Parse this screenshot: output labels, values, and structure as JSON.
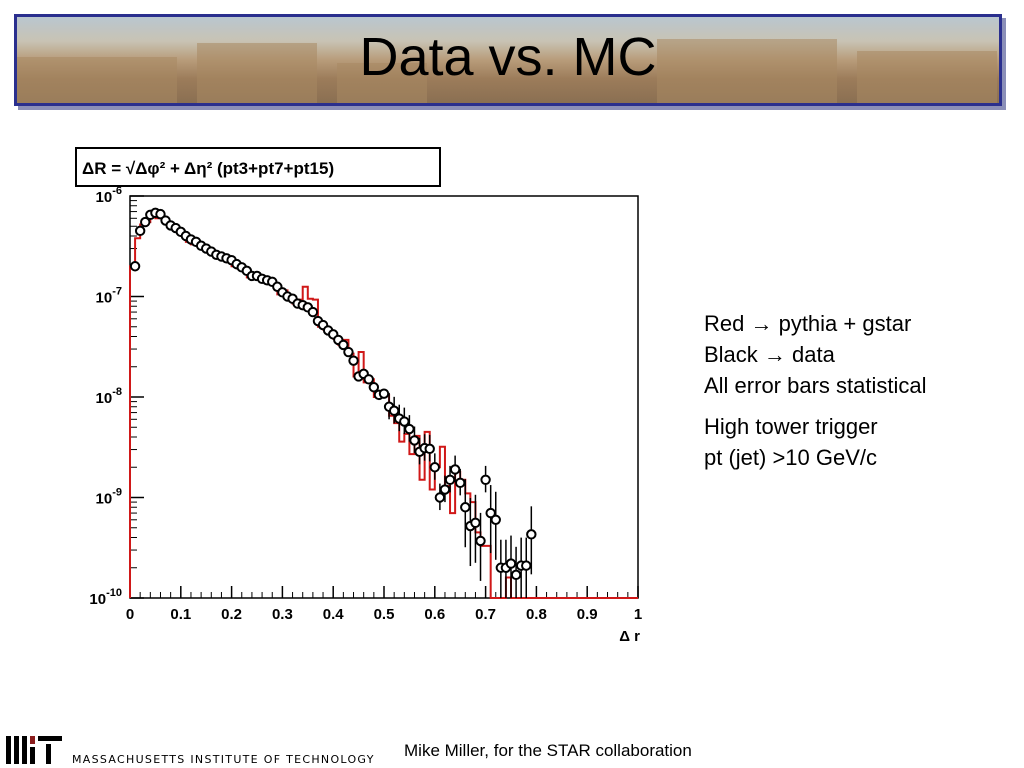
{
  "slide": {
    "title": "Data vs. MC",
    "notes": [
      "Red → pythia + gstar",
      "Black → data",
      "All error bars statistical"
    ],
    "notes2": [
      "High tower trigger",
      "pt (jet) >10 GeV/c"
    ],
    "footer_credit": "Mike Miller, for the STAR collaboration",
    "institution": "MASSACHUSETTS INSTITUTE OF TECHNOLOGY"
  },
  "colors": {
    "banner_border": "#2a2f8e",
    "mc_line": "#d01818",
    "data_marker": "#000000"
  },
  "chart_data": {
    "type": "scatter",
    "title": "ΔR = √Δφ² + Δη²   (pt3+pt7+pt15)",
    "xlabel": "Δ r",
    "ylabel": "",
    "xlim": [
      0,
      1
    ],
    "ylim": [
      1e-10,
      1e-06
    ],
    "y_scale": "log",
    "grid": false,
    "x_ticks": [
      "0",
      "0.1",
      "0.2",
      "0.3",
      "0.4",
      "0.5",
      "0.6",
      "0.7",
      "0.8",
      "0.9",
      "1"
    ],
    "y_ticks": [
      {
        "base": "10",
        "exp": "-6"
      },
      {
        "base": "10",
        "exp": "-7"
      },
      {
        "base": "10",
        "exp": "-8"
      },
      {
        "base": "10",
        "exp": "-9"
      },
      {
        "base": "10",
        "exp": "-10"
      }
    ],
    "series": [
      {
        "style": "markers-with-error-bars",
        "color": "#000000",
        "x": [
          0.01,
          0.02,
          0.03,
          0.04,
          0.05,
          0.06,
          0.07,
          0.08,
          0.09,
          0.1,
          0.11,
          0.12,
          0.13,
          0.14,
          0.15,
          0.16,
          0.17,
          0.18,
          0.19,
          0.2,
          0.21,
          0.22,
          0.23,
          0.24,
          0.25,
          0.26,
          0.27,
          0.28,
          0.29,
          0.3,
          0.31,
          0.32,
          0.33,
          0.34,
          0.35,
          0.36,
          0.37,
          0.38,
          0.39,
          0.4,
          0.41,
          0.42,
          0.43,
          0.44,
          0.45,
          0.46,
          0.47,
          0.48,
          0.49,
          0.5,
          0.51,
          0.52,
          0.53,
          0.54,
          0.55,
          0.56,
          0.57,
          0.58,
          0.59,
          0.6,
          0.61,
          0.62,
          0.63,
          0.64,
          0.65,
          0.66,
          0.67,
          0.68,
          0.69,
          0.7,
          0.71,
          0.72,
          0.73,
          0.74,
          0.75,
          0.76,
          0.77,
          0.78,
          0.79
        ],
        "y": [
          2e-07,
          4.5e-07,
          5.5e-07,
          6.5e-07,
          6.8e-07,
          6.6e-07,
          5.7e-07,
          5.1e-07,
          4.8e-07,
          4.4e-07,
          4e-07,
          3.7e-07,
          3.5e-07,
          3.2e-07,
          3e-07,
          2.8e-07,
          2.6e-07,
          2.5e-07,
          2.4e-07,
          2.3e-07,
          2.1e-07,
          1.95e-07,
          1.8e-07,
          1.6e-07,
          1.6e-07,
          1.5e-07,
          1.45e-07,
          1.4e-07,
          1.25e-07,
          1.1e-07,
          1e-07,
          9.5e-08,
          8.5e-08,
          8.2e-08,
          7.8e-08,
          7e-08,
          5.7e-08,
          5.2e-08,
          4.6e-08,
          4.2e-08,
          3.7e-08,
          3.3e-08,
          2.8e-08,
          2.3e-08,
          1.6e-08,
          1.7e-08,
          1.5e-08,
          1.25e-08,
          1.05e-08,
          1.08e-08,
          8e-09,
          7.3e-09,
          6.1e-09,
          5.7e-09,
          4.8e-09,
          3.7e-09,
          2.85e-09,
          3.1e-09,
          3.05e-09,
          2e-09,
          1e-09,
          1.2e-09,
          1.5e-09,
          1.9e-09,
          1.4e-09,
          8e-10,
          5.2e-10,
          5.6e-10,
          3.7e-10,
          1.5e-09,
          7e-10,
          6e-10,
          2e-10,
          2e-10,
          2.2e-10,
          1.7e-10,
          2.1e-10,
          2.1e-10,
          4.3e-10
        ]
      },
      {
        "style": "step-histogram",
        "color": "#d01818",
        "x": [
          0.01,
          0.02,
          0.03,
          0.04,
          0.05,
          0.06,
          0.07,
          0.08,
          0.09,
          0.1,
          0.11,
          0.12,
          0.13,
          0.14,
          0.15,
          0.16,
          0.17,
          0.18,
          0.19,
          0.2,
          0.21,
          0.22,
          0.23,
          0.24,
          0.25,
          0.26,
          0.27,
          0.28,
          0.29,
          0.3,
          0.31,
          0.32,
          0.33,
          0.34,
          0.35,
          0.36,
          0.37,
          0.38,
          0.39,
          0.4,
          0.41,
          0.42,
          0.43,
          0.44,
          0.45,
          0.46,
          0.47,
          0.48,
          0.49,
          0.5,
          0.51,
          0.52,
          0.53,
          0.54,
          0.55,
          0.56,
          0.57,
          0.58,
          0.59,
          0.6,
          0.61,
          0.62,
          0.63,
          0.64,
          0.65,
          0.66,
          0.67,
          0.68,
          0.69,
          0.7,
          0.71,
          0.72,
          0.73,
          0.74,
          0.75,
          0.76,
          0.77,
          0.78,
          0.79,
          0.8,
          0.81,
          0.82,
          0.83,
          0.84,
          0.85,
          0.86,
          0.87,
          0.88,
          0.89,
          0.9,
          0.91,
          0.92,
          0.93,
          0.94,
          0.95,
          0.96,
          0.97,
          0.98,
          0.99,
          1.0
        ],
        "y": [
          2e-07,
          3.8e-07,
          5.2e-07,
          5.5e-07,
          6.5e-07,
          6e-07,
          6e-07,
          5.3e-07,
          5e-07,
          4.5e-07,
          4e-07,
          3.5e-07,
          3.3e-07,
          3.2e-07,
          3.1e-07,
          2.8e-07,
          2.6e-07,
          2.7e-07,
          2.6e-07,
          2.2e-07,
          2e-07,
          1.9e-07,
          1.9e-07,
          1.55e-07,
          1.65e-07,
          1.5e-07,
          1.5e-07,
          1.45e-07,
          1.3e-07,
          1.05e-07,
          1.15e-07,
          1e-07,
          8.5e-08,
          9.3e-08,
          1.25e-07,
          9.5e-08,
          9.3e-08,
          5e-08,
          4.7e-08,
          4.3e-08,
          3.8e-08,
          3.3e-08,
          3.7e-08,
          2.7e-08,
          1.6e-08,
          2.8e-08,
          1.4e-08,
          1.5e-08,
          1e-08,
          1e-08,
          1.05e-08,
          6.5e-09,
          5.5e-09,
          3.6e-09,
          4.3e-09,
          2.7e-09,
          4.1e-09,
          1.5e-09,
          4.5e-09,
          1.2e-09,
          2e-09,
          3.2e-09,
          1.3e-09,
          7e-10,
          1.8e-09,
          1.5e-09,
          1.1e-09,
          9e-10,
          4.5e-10,
          3.3e-10,
          3.3e-10,
          1e-10,
          1e-10,
          1e-10,
          1.6e-10,
          1e-10,
          1e-10,
          1e-10,
          1e-10,
          1e-10,
          1e-10,
          1e-10,
          1e-10,
          1e-10,
          1e-10,
          1e-10,
          1e-10,
          1e-10,
          1e-10,
          1e-10,
          1e-10,
          1e-10,
          1e-10,
          1e-10,
          1e-10,
          1e-10,
          1e-10,
          1e-10,
          1e-10,
          1e-10
        ]
      }
    ]
  }
}
